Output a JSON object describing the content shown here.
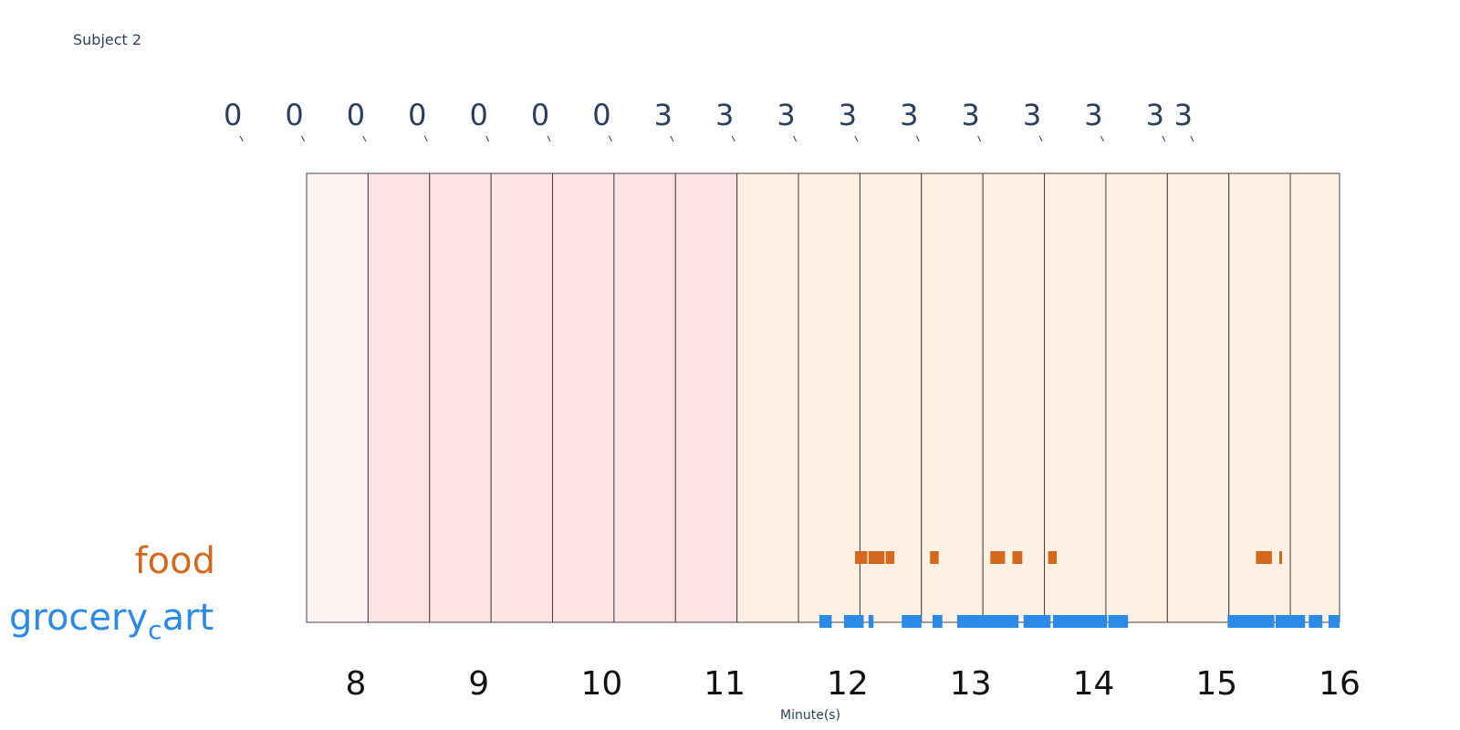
{
  "subtitle": "Subject 2",
  "chart_data": {
    "type": "timeline",
    "title": "",
    "subtitle": "Subject 2",
    "xlabel": "Minute(s)",
    "xlim": [
      7.6,
      16.0
    ],
    "xticks": [
      8,
      9,
      10,
      11,
      12,
      13,
      14,
      15,
      16
    ],
    "bands": [
      {
        "start": 7.6,
        "end": 8.1,
        "level": "low"
      },
      {
        "start": 8.1,
        "end": 8.6,
        "level": "mid"
      },
      {
        "start": 8.6,
        "end": 9.1,
        "level": "mid"
      },
      {
        "start": 9.1,
        "end": 9.6,
        "level": "mid"
      },
      {
        "start": 9.6,
        "end": 10.1,
        "level": "mid"
      },
      {
        "start": 10.1,
        "end": 10.6,
        "level": "mid"
      },
      {
        "start": 10.6,
        "end": 11.1,
        "level": "mid"
      },
      {
        "start": 11.1,
        "end": 11.6,
        "level": "high"
      },
      {
        "start": 11.6,
        "end": 12.1,
        "level": "high"
      },
      {
        "start": 12.1,
        "end": 12.6,
        "level": "high"
      },
      {
        "start": 12.6,
        "end": 13.1,
        "level": "high"
      },
      {
        "start": 13.1,
        "end": 13.6,
        "level": "high"
      },
      {
        "start": 13.6,
        "end": 14.1,
        "level": "high"
      },
      {
        "start": 14.1,
        "end": 14.6,
        "level": "high"
      },
      {
        "start": 14.6,
        "end": 15.1,
        "level": "high"
      },
      {
        "start": 15.1,
        "end": 15.6,
        "level": "high"
      },
      {
        "start": 15.6,
        "end": 16.0,
        "level": "high"
      }
    ],
    "band_colors": {
      "low": "#fef2f2",
      "mid": "#fee2e4",
      "high": "#fef0e2"
    },
    "top_labels": [
      {
        "x": 7.0,
        "text": "0"
      },
      {
        "x": 7.5,
        "text": "0"
      },
      {
        "x": 8.0,
        "text": "0"
      },
      {
        "x": 8.5,
        "text": "0"
      },
      {
        "x": 9.0,
        "text": "0"
      },
      {
        "x": 9.5,
        "text": "0"
      },
      {
        "x": 10.0,
        "text": "0"
      },
      {
        "x": 10.5,
        "text": "3"
      },
      {
        "x": 11.0,
        "text": "3"
      },
      {
        "x": 11.5,
        "text": "3"
      },
      {
        "x": 12.0,
        "text": "3"
      },
      {
        "x": 12.5,
        "text": "3"
      },
      {
        "x": 13.0,
        "text": "3"
      },
      {
        "x": 13.5,
        "text": "3"
      },
      {
        "x": 14.0,
        "text": "3"
      },
      {
        "x": 14.5,
        "text": "3"
      },
      {
        "x": 14.73,
        "text": "3"
      }
    ],
    "series": [
      {
        "name": "food",
        "color": "#d4691d",
        "segments": [
          [
            12.06,
            12.16
          ],
          [
            12.17,
            12.3
          ],
          [
            12.31,
            12.38
          ],
          [
            12.67,
            12.74
          ],
          [
            13.16,
            13.28
          ],
          [
            13.34,
            13.42
          ],
          [
            13.63,
            13.7
          ],
          [
            15.32,
            15.45
          ],
          [
            15.51,
            15.53
          ]
        ]
      },
      {
        "name": "grocery_cart",
        "color": "#2b8ae6",
        "segments": [
          [
            11.77,
            11.87
          ],
          [
            11.97,
            12.13
          ],
          [
            12.17,
            12.21
          ],
          [
            12.44,
            12.6
          ],
          [
            12.69,
            12.77
          ],
          [
            12.89,
            13.39
          ],
          [
            13.43,
            13.65
          ],
          [
            13.67,
            14.11
          ],
          [
            14.12,
            14.28
          ],
          [
            15.09,
            15.47
          ],
          [
            15.48,
            15.72
          ],
          [
            15.75,
            15.86
          ],
          [
            15.91,
            16.0
          ]
        ]
      }
    ]
  }
}
